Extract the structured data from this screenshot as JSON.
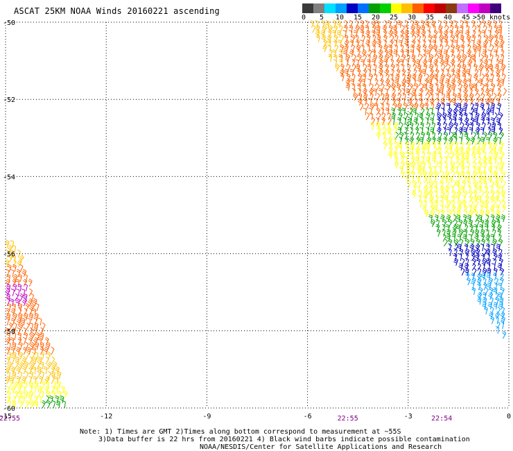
{
  "title": "ASCAT 25KM NOAA Winds 20160221 ascending",
  "colorbar": {
    "colors": [
      "#3a3a3a",
      "#808080",
      "#00e0ff",
      "#00a0ff",
      "#0000c0",
      "#0070ff",
      "#00a000",
      "#00d000",
      "#ffff00",
      "#ffc000",
      "#ff6000",
      "#ff0000",
      "#c00000",
      "#8a3a10",
      "#c070ff",
      "#ff00ff",
      "#c000c0",
      "#40007a"
    ],
    "labels": [
      "0",
      "5",
      "10",
      "15",
      "20",
      "25",
      "30",
      "35",
      "40",
      "45",
      ">50 knots"
    ]
  },
  "axes": {
    "x_ticks": [
      "-15",
      "-12",
      "-9",
      "-6",
      "-3",
      "0"
    ],
    "y_ticks": [
      "-50",
      "-52",
      "-54",
      "-56",
      "-58",
      "-60"
    ],
    "lon_range": [
      -15,
      0
    ],
    "lat_range": [
      -60,
      -50
    ],
    "grid": true
  },
  "pass_times": [
    {
      "lon": -15,
      "label": "22:55"
    },
    {
      "lon": -4.8,
      "label": "22:55"
    },
    {
      "lon": -2.0,
      "label": "22:54"
    }
  ],
  "notes": [
    "Note: 1) Times are GMT 2)Times along bottom correspond to measurement at ~55S",
    "3)Data buffer is 22 hrs from 20160221 4) Black wind barbs indicate possible contamination",
    "NOAA/NESDIS/Center for Satellite Applications and Research"
  ],
  "swaths": [
    {
      "name": "east-swath",
      "lat_top": -50,
      "lat_bottom": -58.2,
      "lon_left_top": -6.0,
      "lon_left_bottom": -0.2,
      "lon_right": 0
    },
    {
      "name": "west-swath",
      "lat_top": -55.7,
      "lat_bottom": -60,
      "lon_left": -15,
      "lon_right_top": -14.6,
      "lon_right_bottom": -13.0
    }
  ],
  "wind_bands": [
    {
      "swath": 0,
      "lat_from": -50.0,
      "lat_to": -51.4,
      "color": "#ffc000"
    },
    {
      "swath": 0,
      "lat_from": -50.0,
      "lat_to": -52.6,
      "color": "#ff6000",
      "lon_min": -5.0
    },
    {
      "swath": 0,
      "lat_from": -52.3,
      "lat_to": -53.3,
      "color": "#00a000",
      "lon_min": -3.5
    },
    {
      "swath": 0,
      "lat_from": -52.2,
      "lat_to": -52.9,
      "color": "#0000c0",
      "lon_min": -2.2
    },
    {
      "swath": 0,
      "lat_from": -52.6,
      "lat_to": -53.2,
      "color": "#ffff00",
      "lon_max": -3.4
    },
    {
      "swath": 0,
      "lat_from": -53.2,
      "lat_to": -55.0,
      "color": "#ffff00"
    },
    {
      "swath": 0,
      "lat_from": -55.0,
      "lat_to": -55.8,
      "color": "#00a000"
    },
    {
      "swath": 0,
      "lat_from": -55.8,
      "lat_to": -56.6,
      "color": "#0000c0"
    },
    {
      "swath": 0,
      "lat_from": -56.6,
      "lat_to": -58.2,
      "color": "#00a0ff"
    },
    {
      "swath": 1,
      "lat_from": -55.7,
      "lat_to": -56.4,
      "color": "#ffc000"
    },
    {
      "swath": 1,
      "lat_from": -56.4,
      "lat_to": -58.6,
      "color": "#ff6000"
    },
    {
      "swath": 1,
      "lat_from": -56.8,
      "lat_to": -57.4,
      "color": "#c000c0",
      "lon_max": -14.3
    },
    {
      "swath": 1,
      "lat_from": -58.6,
      "lat_to": -59.7,
      "color": "#ffc000"
    },
    {
      "swath": 1,
      "lat_from": -59.4,
      "lat_to": -60.0,
      "color": "#ffff00"
    },
    {
      "swath": 1,
      "lat_from": -59.7,
      "lat_to": -60.0,
      "color": "#00a000",
      "lon_min": -13.9
    }
  ]
}
